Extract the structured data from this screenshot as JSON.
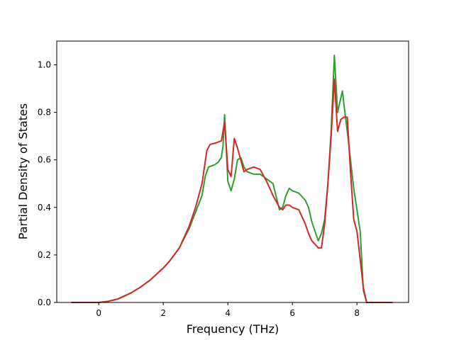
{
  "chart_data": {
    "type": "line",
    "title": "",
    "xlabel": "Frequency (THz)",
    "ylabel": "Partial Density of States",
    "xlim": [
      -1.3,
      9.6
    ],
    "ylim": [
      0.0,
      1.1
    ],
    "xticks": [
      0,
      2,
      4,
      6,
      8
    ],
    "yticks": [
      0.0,
      0.2,
      0.4,
      0.6,
      0.8,
      1.0
    ],
    "xtick_labels": [
      "0",
      "2",
      "4",
      "6",
      "8"
    ],
    "ytick_labels": [
      "0.0",
      "0.2",
      "0.4",
      "0.6",
      "0.8",
      "1.0"
    ],
    "grid": false,
    "legend": "none",
    "series": [
      {
        "color": "#2ca02c",
        "x": [
          -0.85,
          0.0,
          0.3,
          0.6,
          1.0,
          1.3,
          1.6,
          2.0,
          2.2,
          2.5,
          2.8,
          3.0,
          3.2,
          3.3,
          3.4,
          3.6,
          3.7,
          3.8,
          3.85,
          3.9,
          4.0,
          4.1,
          4.2,
          4.3,
          4.4,
          4.5,
          4.6,
          4.8,
          5.0,
          5.2,
          5.4,
          5.6,
          5.7,
          5.8,
          5.9,
          6.0,
          6.2,
          6.4,
          6.5,
          6.6,
          6.8,
          6.9,
          7.0,
          7.1,
          7.2,
          7.3,
          7.4,
          7.5,
          7.55,
          7.6,
          7.7,
          7.8,
          7.9,
          8.0,
          8.1,
          8.2,
          8.3,
          8.5,
          9.1
        ],
        "y": [
          0.0,
          0.0,
          0.005,
          0.015,
          0.04,
          0.065,
          0.095,
          0.145,
          0.175,
          0.23,
          0.31,
          0.38,
          0.45,
          0.53,
          0.57,
          0.58,
          0.59,
          0.61,
          0.66,
          0.79,
          0.51,
          0.47,
          0.52,
          0.6,
          0.61,
          0.57,
          0.55,
          0.54,
          0.54,
          0.52,
          0.5,
          0.39,
          0.4,
          0.45,
          0.48,
          0.47,
          0.46,
          0.43,
          0.4,
          0.34,
          0.26,
          0.29,
          0.35,
          0.5,
          0.72,
          1.04,
          0.8,
          0.86,
          0.89,
          0.83,
          0.72,
          0.6,
          0.48,
          0.39,
          0.3,
          0.05,
          0.0,
          0.0,
          0.0
        ]
      },
      {
        "color": "#d62728",
        "x": [
          -0.85,
          0.0,
          0.3,
          0.6,
          1.0,
          1.3,
          1.6,
          2.0,
          2.2,
          2.5,
          2.8,
          3.0,
          3.2,
          3.35,
          3.45,
          3.6,
          3.7,
          3.8,
          3.9,
          4.0,
          4.1,
          4.2,
          4.3,
          4.5,
          4.6,
          4.8,
          5.0,
          5.2,
          5.4,
          5.6,
          5.7,
          5.8,
          5.9,
          6.0,
          6.2,
          6.4,
          6.5,
          6.6,
          6.8,
          6.9,
          7.0,
          7.1,
          7.2,
          7.3,
          7.4,
          7.5,
          7.6,
          7.7,
          7.8,
          7.9,
          8.0,
          8.1,
          8.2,
          8.3,
          8.5,
          9.1
        ],
        "y": [
          0.0,
          0.0,
          0.005,
          0.015,
          0.04,
          0.065,
          0.095,
          0.145,
          0.175,
          0.23,
          0.32,
          0.4,
          0.5,
          0.64,
          0.665,
          0.67,
          0.675,
          0.68,
          0.76,
          0.56,
          0.53,
          0.69,
          0.65,
          0.55,
          0.56,
          0.57,
          0.56,
          0.51,
          0.45,
          0.4,
          0.39,
          0.41,
          0.41,
          0.4,
          0.39,
          0.33,
          0.29,
          0.26,
          0.23,
          0.23,
          0.33,
          0.5,
          0.7,
          0.94,
          0.72,
          0.77,
          0.78,
          0.78,
          0.55,
          0.35,
          0.3,
          0.18,
          0.06,
          0.0,
          0.0,
          0.0
        ]
      }
    ]
  }
}
